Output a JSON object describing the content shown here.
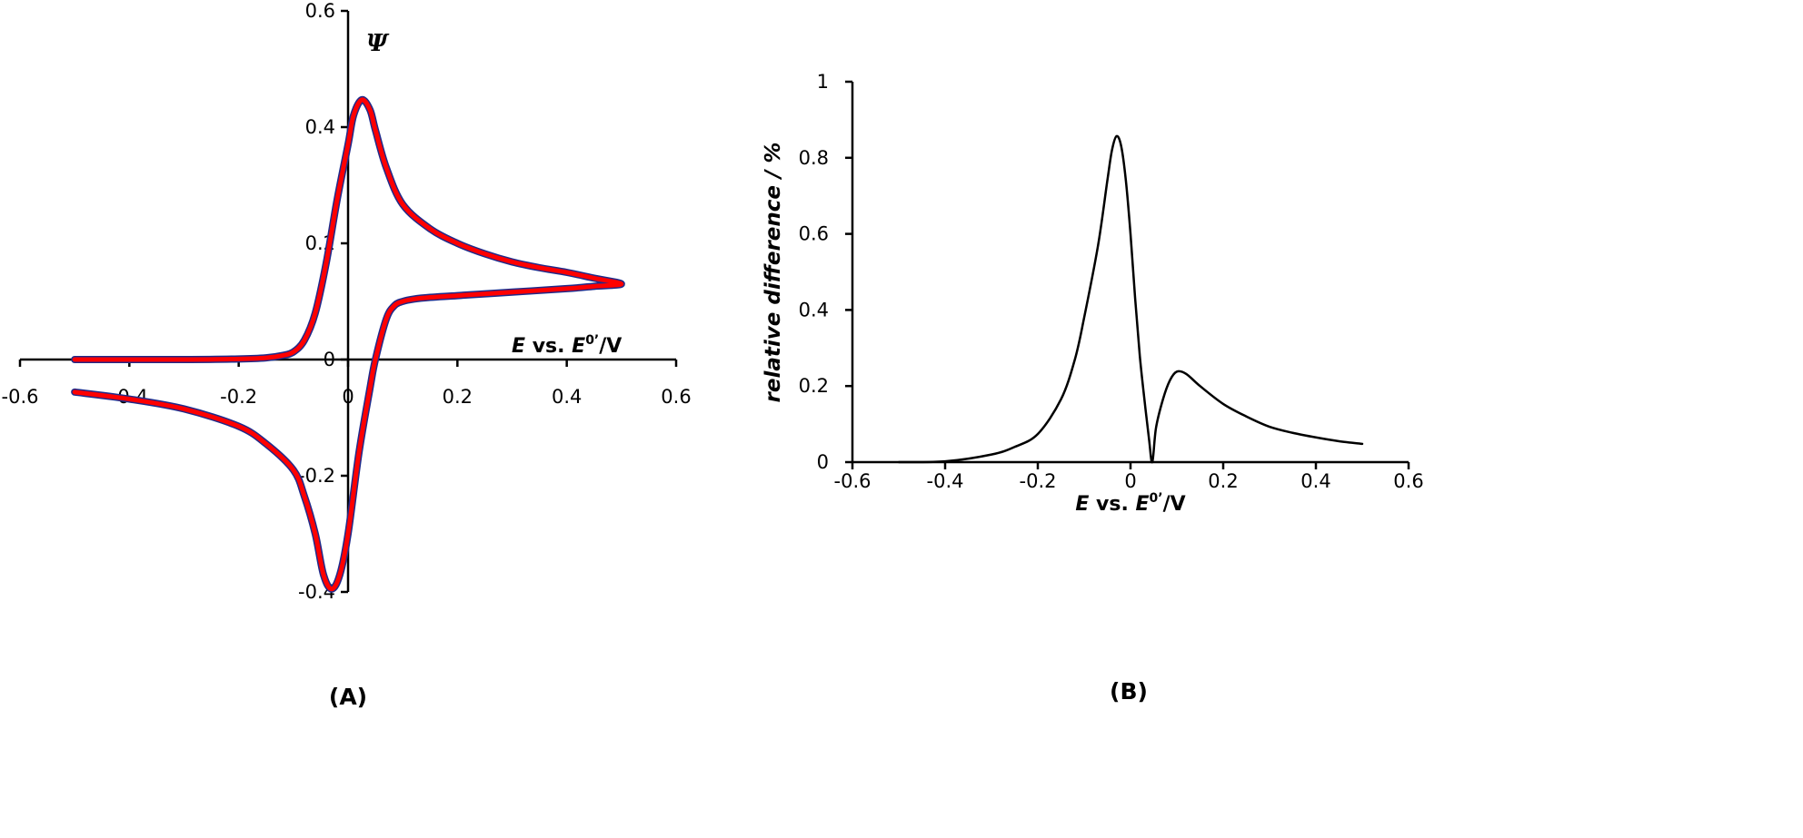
{
  "chart_data": [
    {
      "type": "line",
      "panel_label": "(A)",
      "ylabel": "Ψ",
      "xlabel": {
        "prefix": "E",
        "middle": " vs. ",
        "symbol": "E",
        "superscript": "0’",
        "suffix": "/V"
      },
      "xlim": [
        -0.6,
        0.6
      ],
      "ylim": [
        -0.4,
        0.6
      ],
      "xticks": [
        "-0.6",
        "-0.4",
        "-0.2",
        "0",
        "0.2",
        "0.4",
        "0.6"
      ],
      "yticks": [
        "-0.4",
        "-0.2",
        "0",
        "0.2",
        "0.4",
        "0.6"
      ],
      "grid": false,
      "colors": {
        "outline": "#1f2a8a",
        "curve": "#ff0000"
      },
      "series": [
        {
          "x": [
            -0.5,
            -0.3,
            -0.2,
            -0.15,
            -0.12,
            -0.1,
            -0.08,
            -0.06,
            -0.04,
            -0.02,
            0,
            0.01,
            0.025,
            0.04,
            0.05,
            0.07,
            0.1,
            0.15,
            0.2,
            0.25,
            0.3,
            0.35,
            0.4,
            0.45,
            0.5,
            0.45,
            0.4,
            0.3,
            0.2,
            0.15,
            0.12,
            0.1,
            0.085,
            0.07,
            0.05,
            0.04,
            0.02,
            0,
            -0.015,
            -0.03,
            -0.045,
            -0.06,
            -0.08,
            -0.1,
            -0.15,
            -0.2,
            -0.3,
            -0.4,
            -0.5
          ],
          "y": [
            0,
            0,
            0.001,
            0.003,
            0.007,
            0.013,
            0.033,
            0.08,
            0.166,
            0.275,
            0.37,
            0.42,
            0.447,
            0.43,
            0.395,
            0.33,
            0.267,
            0.225,
            0.2,
            0.182,
            0.168,
            0.158,
            0.15,
            0.14,
            0.13,
            0.126,
            0.122,
            0.116,
            0.11,
            0.107,
            0.104,
            0.1,
            0.093,
            0.07,
            0.0,
            -0.05,
            -0.16,
            -0.3,
            -0.37,
            -0.395,
            -0.37,
            -0.3,
            -0.235,
            -0.19,
            -0.145,
            -0.115,
            -0.085,
            -0.068,
            -0.056
          ]
        }
      ]
    },
    {
      "type": "line",
      "panel_label": "(B)",
      "ylabel": "relative difference / %",
      "xlabel": {
        "prefix": "E",
        "middle": " vs. ",
        "symbol": "E",
        "superscript": "0’",
        "suffix": "/V"
      },
      "xlim": [
        -0.6,
        0.6
      ],
      "ylim": [
        0,
        1
      ],
      "xticks": [
        "-0.6",
        "-0.4",
        "-0.2",
        "0",
        "0.2",
        "0.4",
        "0.6"
      ],
      "yticks": [
        "0",
        "0.2",
        "0.4",
        "0.6",
        "0.8",
        "1"
      ],
      "grid": false,
      "colors": {
        "curve": "#000000"
      },
      "series": [
        {
          "x": [
            -0.5,
            -0.4,
            -0.3,
            -0.25,
            -0.2,
            -0.15,
            -0.12,
            -0.1,
            -0.07,
            -0.05,
            -0.04,
            -0.03,
            -0.02,
            -0.01,
            0,
            0.01,
            0.02,
            0.03,
            0.04,
            0.047,
            0.055,
            0.07,
            0.085,
            0.1,
            0.12,
            0.15,
            0.2,
            0.25,
            0.3,
            0.35,
            0.4,
            0.45,
            0.5
          ],
          "y": [
            0,
            0.002,
            0.02,
            0.04,
            0.074,
            0.165,
            0.27,
            0.38,
            0.57,
            0.74,
            0.82,
            0.857,
            0.83,
            0.74,
            0.6,
            0.43,
            0.28,
            0.165,
            0.06,
            0.0,
            0.09,
            0.165,
            0.215,
            0.238,
            0.232,
            0.2,
            0.153,
            0.12,
            0.093,
            0.077,
            0.065,
            0.055,
            0.048
          ]
        }
      ]
    }
  ]
}
